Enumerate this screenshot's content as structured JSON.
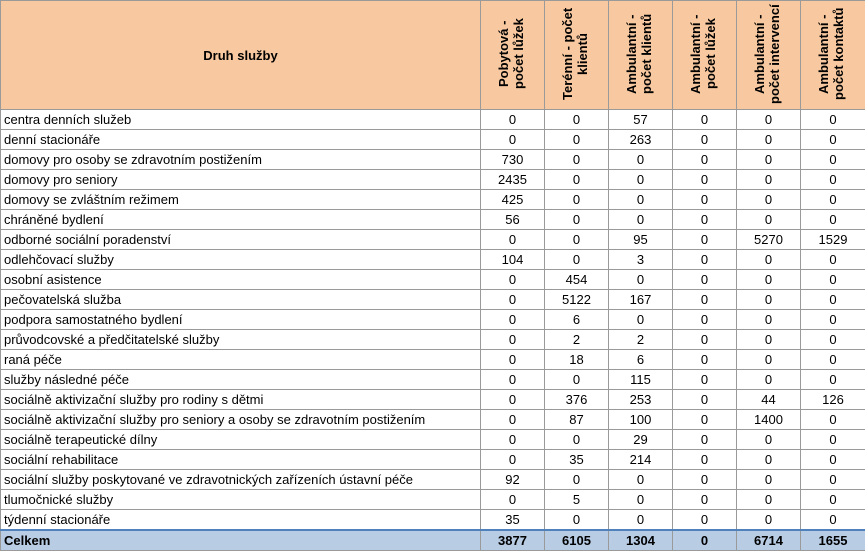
{
  "header": {
    "name": "Druh služby",
    "columns": [
      "Pobytová - počet lůžek",
      "Terénní - počet klientů",
      "Ambulantní - počet klientů",
      "Ambulantní - počet lůžek",
      "Ambulantní - počet intervencí",
      "Ambulantní - počet kontaktů"
    ]
  },
  "rows": [
    {
      "name": "centra denních služeb",
      "values": [
        "0",
        "0",
        "57",
        "0",
        "0",
        "0"
      ]
    },
    {
      "name": "denní stacionáře",
      "values": [
        "0",
        "0",
        "263",
        "0",
        "0",
        "0"
      ]
    },
    {
      "name": "domovy pro osoby se zdravotním postižením",
      "values": [
        "730",
        "0",
        "0",
        "0",
        "0",
        "0"
      ]
    },
    {
      "name": "domovy pro seniory",
      "values": [
        "2435",
        "0",
        "0",
        "0",
        "0",
        "0"
      ]
    },
    {
      "name": "domovy se zvláštním režimem",
      "values": [
        "425",
        "0",
        "0",
        "0",
        "0",
        "0"
      ]
    },
    {
      "name": "chráněné bydlení",
      "values": [
        "56",
        "0",
        "0",
        "0",
        "0",
        "0"
      ]
    },
    {
      "name": "odborné sociální poradenství",
      "values": [
        "0",
        "0",
        "95",
        "0",
        "5270",
        "1529"
      ]
    },
    {
      "name": "odlehčovací služby",
      "values": [
        "104",
        "0",
        "3",
        "0",
        "0",
        "0"
      ]
    },
    {
      "name": "osobní asistence",
      "values": [
        "0",
        "454",
        "0",
        "0",
        "0",
        "0"
      ]
    },
    {
      "name": "pečovatelská služba",
      "values": [
        "0",
        "5122",
        "167",
        "0",
        "0",
        "0"
      ]
    },
    {
      "name": "podpora samostatného bydlení",
      "values": [
        "0",
        "6",
        "0",
        "0",
        "0",
        "0"
      ]
    },
    {
      "name": "průvodcovské a předčitatelské služby",
      "values": [
        "0",
        "2",
        "2",
        "0",
        "0",
        "0"
      ]
    },
    {
      "name": "raná péče",
      "values": [
        "0",
        "18",
        "6",
        "0",
        "0",
        "0"
      ]
    },
    {
      "name": "služby následné péče",
      "values": [
        "0",
        "0",
        "115",
        "0",
        "0",
        "0"
      ]
    },
    {
      "name": "sociálně aktivizační služby pro rodiny s dětmi",
      "values": [
        "0",
        "376",
        "253",
        "0",
        "44",
        "126"
      ]
    },
    {
      "name": "sociálně aktivizační služby pro seniory a osoby se zdravotním postižením",
      "values": [
        "0",
        "87",
        "100",
        "0",
        "1400",
        "0"
      ]
    },
    {
      "name": "sociálně terapeutické dílny",
      "values": [
        "0",
        "0",
        "29",
        "0",
        "0",
        "0"
      ]
    },
    {
      "name": "sociální rehabilitace",
      "values": [
        "0",
        "35",
        "214",
        "0",
        "0",
        "0"
      ]
    },
    {
      "name": "sociální služby poskytované ve zdravotnických zařízeních ústavní péče",
      "values": [
        "92",
        "0",
        "0",
        "0",
        "0",
        "0"
      ]
    },
    {
      "name": "tlumočnické služby",
      "values": [
        "0",
        "5",
        "0",
        "0",
        "0",
        "0"
      ]
    },
    {
      "name": "týdenní stacionáře",
      "values": [
        "35",
        "0",
        "0",
        "0",
        "0",
        "0"
      ]
    }
  ],
  "total": {
    "name": "Celkem",
    "values": [
      "3877",
      "6105",
      "1304",
      "0",
      "6714",
      "1655"
    ]
  },
  "colors": {
    "header_bg": "#f8c9a0",
    "total_bg": "#b8cce4",
    "grid": "#9a9a9a"
  }
}
